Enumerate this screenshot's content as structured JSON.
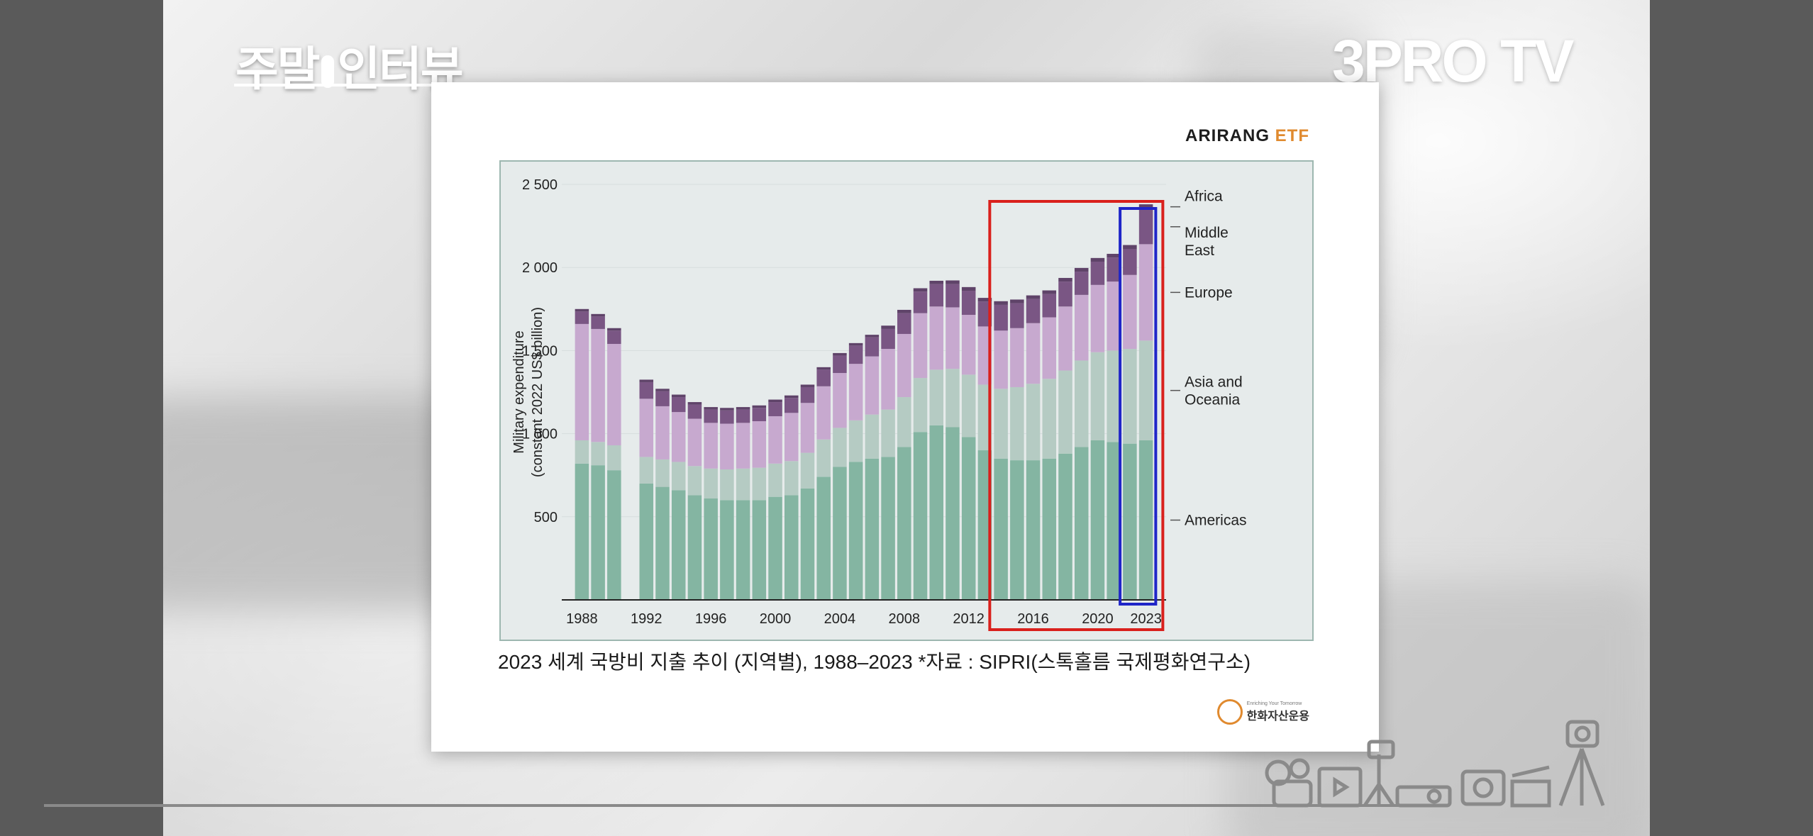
{
  "channel": {
    "left_logo_part1": "주말",
    "left_logo_part2": "인터뷰",
    "right_logo": "3PRO TV"
  },
  "slide": {
    "brand_top_a": "ARIRANG",
    "brand_top_b": " ETF",
    "caption": "2023 세계 국방비 지출 추이 (지역별), 1988–2023 *자료 : SIPRI(스톡홀름 국제평화연구소)",
    "brand_bottom_small": "Enriching Your Tomorrow",
    "brand_bottom_name": "한화자산운용"
  },
  "colors": {
    "americas": "#84b5a2",
    "asia_oceania": "#b5cbc3",
    "europe": "#c7a9cf",
    "middle_east": "#7a5684",
    "africa": "#5f4369",
    "red_box": "#d9201c",
    "blue_box": "#1f25c8",
    "chart_bg": "#e6ebeb"
  },
  "chart_data": {
    "type": "bar",
    "stacked": true,
    "ylabel": "Military expenditure (constant 2022 US$ billion)",
    "xlabel": "",
    "ylim": [
      0,
      2500
    ],
    "yticks": [
      500,
      1000,
      1500,
      2000,
      2500
    ],
    "ytick_labels": [
      "500",
      "1 000",
      "1 500",
      "2 000",
      "2 500"
    ],
    "xtick_labels": [
      "1988",
      "1992",
      "1996",
      "2000",
      "2004",
      "2008",
      "2012",
      "2016",
      "2020",
      "2023"
    ],
    "grid": true,
    "legend_placement": "right (labels beside bars)",
    "categories": [
      1988,
      1989,
      1990,
      1991,
      1992,
      1993,
      1994,
      1995,
      1996,
      1997,
      1998,
      1999,
      2000,
      2001,
      2002,
      2003,
      2004,
      2005,
      2006,
      2007,
      2008,
      2009,
      2010,
      2011,
      2012,
      2013,
      2014,
      2015,
      2016,
      2017,
      2018,
      2019,
      2020,
      2021,
      2022,
      2023
    ],
    "series": [
      {
        "name": "Americas",
        "values": [
          820,
          810,
          780,
          null,
          700,
          680,
          660,
          630,
          610,
          600,
          600,
          600,
          620,
          630,
          670,
          740,
          800,
          830,
          850,
          860,
          920,
          1010,
          1050,
          1040,
          980,
          900,
          850,
          840,
          840,
          850,
          880,
          920,
          960,
          950,
          940,
          960
        ]
      },
      {
        "name": "Asia and Oceania",
        "values": [
          140,
          140,
          150,
          null,
          160,
          165,
          170,
          175,
          180,
          185,
          190,
          195,
          200,
          205,
          215,
          225,
          235,
          250,
          265,
          285,
          300,
          325,
          335,
          350,
          375,
          395,
          420,
          440,
          460,
          480,
          500,
          520,
          530,
          550,
          570,
          600
        ]
      },
      {
        "name": "Europe",
        "values": [
          700,
          680,
          610,
          null,
          350,
          320,
          300,
          285,
          275,
          275,
          275,
          280,
          285,
          290,
          300,
          320,
          330,
          340,
          350,
          365,
          380,
          390,
          380,
          370,
          360,
          350,
          350,
          355,
          365,
          370,
          385,
          395,
          405,
          415,
          445,
          580
        ]
      },
      {
        "name": "Middle East",
        "values": [
          75,
          75,
          80,
          null,
          100,
          90,
          90,
          85,
          80,
          80,
          80,
          80,
          85,
          90,
          95,
          100,
          105,
          110,
          115,
          120,
          125,
          130,
          135,
          140,
          145,
          150,
          155,
          150,
          145,
          140,
          150,
          140,
          140,
          145,
          155,
          210
        ]
      },
      {
        "name": "Africa",
        "values": [
          15,
          15,
          15,
          null,
          15,
          15,
          15,
          15,
          15,
          15,
          15,
          15,
          15,
          15,
          15,
          15,
          15,
          15,
          15,
          20,
          20,
          20,
          20,
          22,
          22,
          22,
          22,
          22,
          22,
          22,
          22,
          22,
          22,
          22,
          25,
          30
        ]
      }
    ],
    "annotations": [
      {
        "type": "highlight-box",
        "color": "red",
        "from": 2014,
        "to": 2023
      },
      {
        "type": "highlight-box",
        "color": "blue",
        "from": 2022,
        "to": 2023
      }
    ]
  }
}
